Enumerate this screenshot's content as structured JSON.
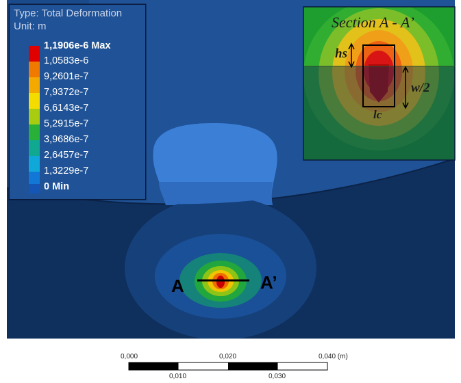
{
  "legend": {
    "type_label": "Type: Total Deformation",
    "unit_label": "Unit: m",
    "entries": [
      {
        "label": "1,1906e-6 Max",
        "color": "#e00000"
      },
      {
        "label": "1,0583e-6",
        "color": "#f07a00"
      },
      {
        "label": "9,2601e-7",
        "color": "#f4a900"
      },
      {
        "label": "7,9372e-7",
        "color": "#f4dc00"
      },
      {
        "label": "6,6143e-7",
        "color": "#a8cc10"
      },
      {
        "label": "5,2915e-7",
        "color": "#28b038"
      },
      {
        "label": "3,9686e-7",
        "color": "#10a890"
      },
      {
        "label": "2,6457e-7",
        "color": "#10a8d8"
      },
      {
        "label": "1,3229e-7",
        "color": "#1278d8"
      },
      {
        "label": "0 Min",
        "color": "#1555b5"
      }
    ]
  },
  "inset": {
    "title": "Section A - A’",
    "label_hs": "hs",
    "label_w2": "w/2",
    "label_lc": "lc"
  },
  "section": {
    "label_a": "A",
    "label_a_prime": "A’"
  },
  "scale_bar": {
    "top_ticks": [
      "0,000",
      "0,020",
      "0,040 (m)"
    ],
    "bottom_ticks": [
      "0,010",
      "0,030"
    ]
  },
  "colors": {
    "background_blue": "#1f5296",
    "dark_band": "#0f2f5d",
    "light_bump": "#3c7fd6"
  }
}
